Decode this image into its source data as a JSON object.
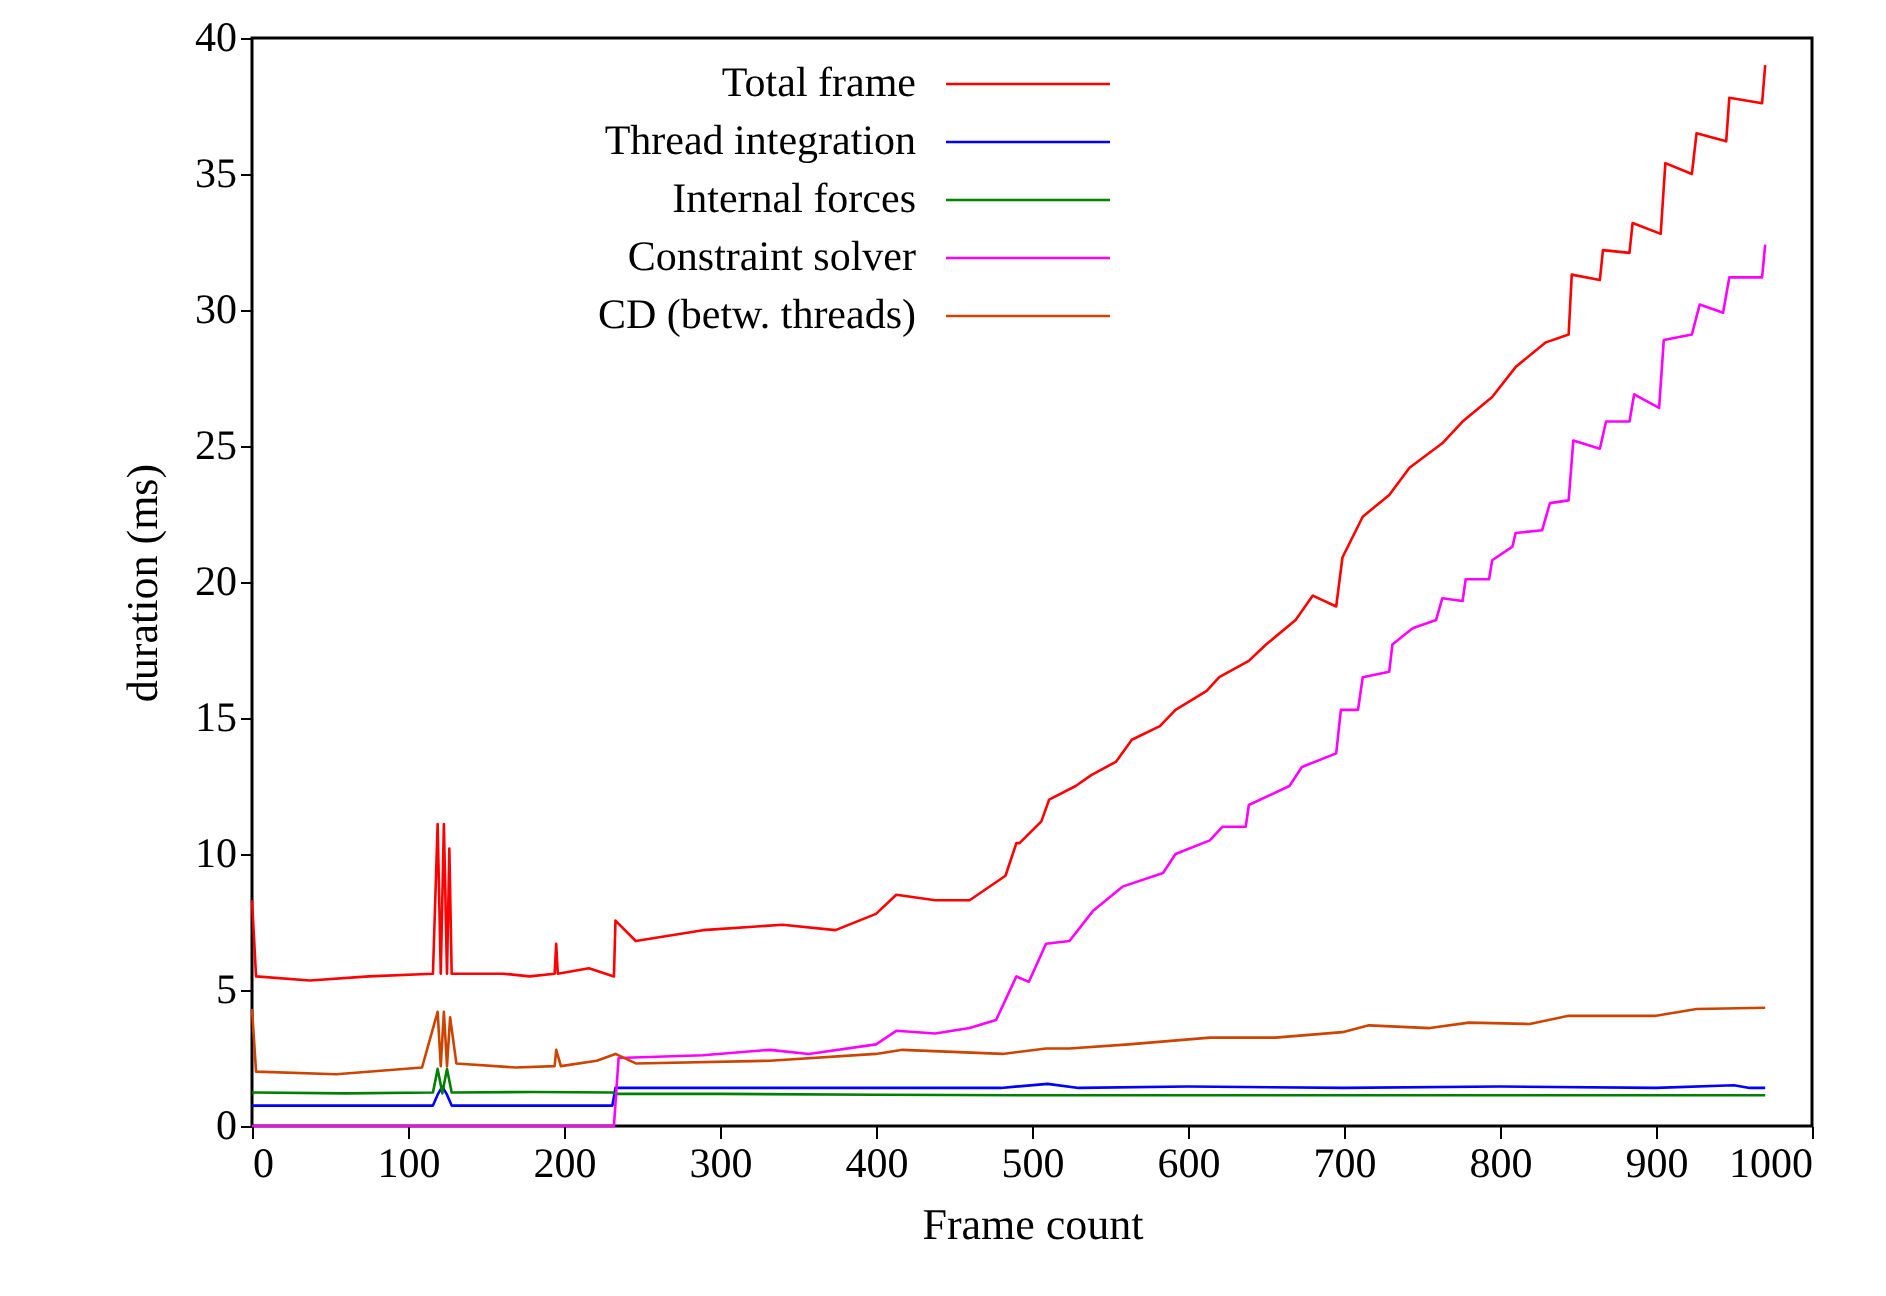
{
  "chart_data": {
    "type": "line",
    "xlabel": "Frame count",
    "ylabel": "duration (ms)",
    "xlim": [
      0,
      1000
    ],
    "ylim": [
      0,
      40
    ],
    "xticks": [
      0,
      100,
      200,
      300,
      400,
      500,
      600,
      700,
      800,
      900,
      1000
    ],
    "yticks": [
      0,
      5,
      10,
      15,
      20,
      25,
      30,
      35,
      40
    ],
    "grid": false,
    "legend": "top left",
    "marker": "none",
    "line_style": "solid",
    "series": [
      {
        "name": "Total frame",
        "color": "#ff0000",
        "x": [
          0,
          2.6,
          37,
          75,
          116,
          119,
          121,
          123,
          125,
          126.5,
          128,
          161,
          178,
          194,
          195,
          196,
          216,
          232,
          233,
          246,
          289,
          340,
          374,
          400,
          413,
          438,
          460,
          483,
          490,
          492,
          506,
          511,
          528,
          538,
          554,
          564,
          582,
          592,
          612,
          620,
          639,
          650,
          669,
          680,
          695,
          699,
          712,
          729,
          742,
          763,
          776,
          795,
          810,
          829,
          844,
          846,
          864,
          866,
          883,
          885,
          903,
          906,
          923,
          926,
          945,
          947,
          968,
          970
        ],
        "values": [
          8.3,
          5.5,
          5.35,
          5.5,
          5.6,
          11.1,
          5.6,
          11.1,
          5.6,
          10.2,
          5.6,
          5.6,
          5.5,
          5.6,
          6.7,
          5.6,
          5.8,
          5.5,
          7.55,
          6.8,
          7.2,
          7.4,
          7.2,
          7.8,
          8.5,
          8.3,
          8.3,
          9.2,
          10.4,
          10.4,
          11.2,
          12.0,
          12.5,
          12.9,
          13.4,
          14.2,
          14.7,
          15.3,
          16.0,
          16.5,
          17.1,
          17.7,
          18.6,
          19.5,
          19.1,
          20.9,
          22.4,
          23.2,
          24.2,
          25.1,
          25.9,
          26.8,
          27.9,
          28.8,
          29.1,
          31.3,
          31.1,
          32.2,
          32.1,
          33.2,
          32.8,
          35.4,
          35.0,
          36.5,
          36.2,
          37.8,
          37.6,
          39.0
        ]
      },
      {
        "name": "Thread integration",
        "color": "#0000ff",
        "x": [
          0,
          60,
          116,
          119,
          122,
          125,
          128,
          180,
          231,
          233,
          300,
          400,
          480,
          510,
          530,
          600,
          700,
          800,
          900,
          950,
          960,
          970
        ],
        "values": [
          0.75,
          0.75,
          0.75,
          1.15,
          1.45,
          1.15,
          0.75,
          0.75,
          0.75,
          1.4,
          1.4,
          1.4,
          1.4,
          1.55,
          1.4,
          1.45,
          1.4,
          1.45,
          1.4,
          1.5,
          1.4,
          1.4
        ]
      },
      {
        "name": "Internal forces",
        "color": "#008000",
        "x": [
          0,
          60,
          116,
          119,
          122,
          125,
          128,
          180,
          231,
          233,
          300,
          400,
          500,
          600,
          700,
          800,
          900,
          970
        ],
        "values": [
          1.23,
          1.2,
          1.23,
          2.1,
          1.2,
          2.1,
          1.23,
          1.25,
          1.23,
          1.18,
          1.18,
          1.15,
          1.13,
          1.13,
          1.13,
          1.13,
          1.13,
          1.13
        ]
      },
      {
        "name": "Constraint solver",
        "color": "#ff00ff",
        "x": [
          0,
          231,
          232,
          235,
          289,
          332,
          357,
          400,
          413,
          438,
          460,
          477,
          490,
          498,
          509,
          524,
          539,
          558,
          584,
          592,
          614,
          622,
          637,
          639,
          665,
          673,
          695,
          698,
          709,
          712,
          729,
          731,
          744,
          759,
          763,
          776,
          778,
          793,
          795,
          808,
          810,
          827,
          832,
          844,
          847,
          864,
          868,
          883,
          886,
          902,
          905,
          923,
          928,
          943,
          947,
          968,
          970
        ],
        "values": [
          0,
          0,
          0,
          2.5,
          2.6,
          2.8,
          2.65,
          3.0,
          3.5,
          3.4,
          3.6,
          3.9,
          5.5,
          5.3,
          6.7,
          6.8,
          7.9,
          8.8,
          9.3,
          10.0,
          10.5,
          11.0,
          11.0,
          11.8,
          12.5,
          13.2,
          13.7,
          15.3,
          15.3,
          16.5,
          16.7,
          17.7,
          18.3,
          18.6,
          19.4,
          19.3,
          20.1,
          20.1,
          20.8,
          21.3,
          21.8,
          21.9,
          22.9,
          23.0,
          25.2,
          24.9,
          25.9,
          25.9,
          26.9,
          26.4,
          28.9,
          29.1,
          30.2,
          29.9,
          31.2,
          31.2,
          32.4
        ]
      },
      {
        "name": "CD (betw. threads)",
        "color": "#cc4400",
        "x": [
          0,
          2.6,
          54,
          109,
          119,
          121,
          123,
          125,
          127,
          131,
          169,
          194,
          195,
          198,
          221,
          233,
          246,
          332,
          400,
          417,
          481,
          509,
          524,
          562,
          614,
          656,
          699,
          716,
          755,
          780,
          819,
          844,
          900,
          926,
          970
        ],
        "values": [
          4.3,
          2.0,
          1.9,
          2.15,
          4.2,
          2.2,
          4.2,
          2.2,
          4.0,
          2.3,
          2.15,
          2.2,
          2.8,
          2.2,
          2.4,
          2.65,
          2.3,
          2.4,
          2.65,
          2.8,
          2.65,
          2.85,
          2.85,
          3.0,
          3.25,
          3.25,
          3.45,
          3.7,
          3.6,
          3.8,
          3.75,
          4.05,
          4.05,
          4.3,
          4.35
        ]
      }
    ]
  }
}
